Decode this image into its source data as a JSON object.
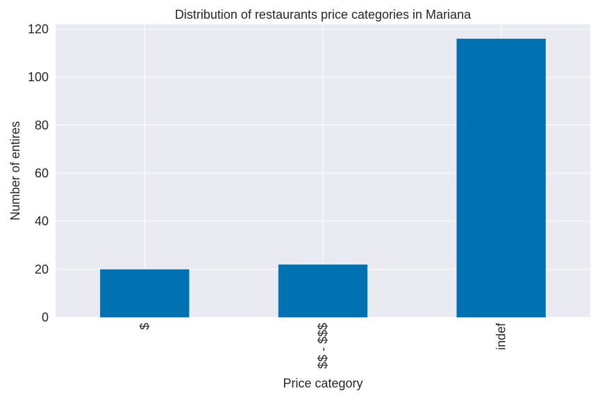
{
  "chart_data": {
    "type": "bar",
    "title": "Distribution of restaurants price categories in Mariana",
    "xlabel": "Price category",
    "ylabel": "Number of entires",
    "categories": [
      "$",
      "$$ - $$$",
      "indef"
    ],
    "values": [
      20,
      22,
      116
    ],
    "ylim": [
      0,
      122
    ],
    "yticks": [
      0,
      20,
      40,
      60,
      80,
      100,
      120
    ],
    "grid": true,
    "bar_color": "#0072b2",
    "plot_background": "#eaeaf2",
    "grid_color": "#ffffff",
    "tick_label_rotation": "vertical"
  }
}
